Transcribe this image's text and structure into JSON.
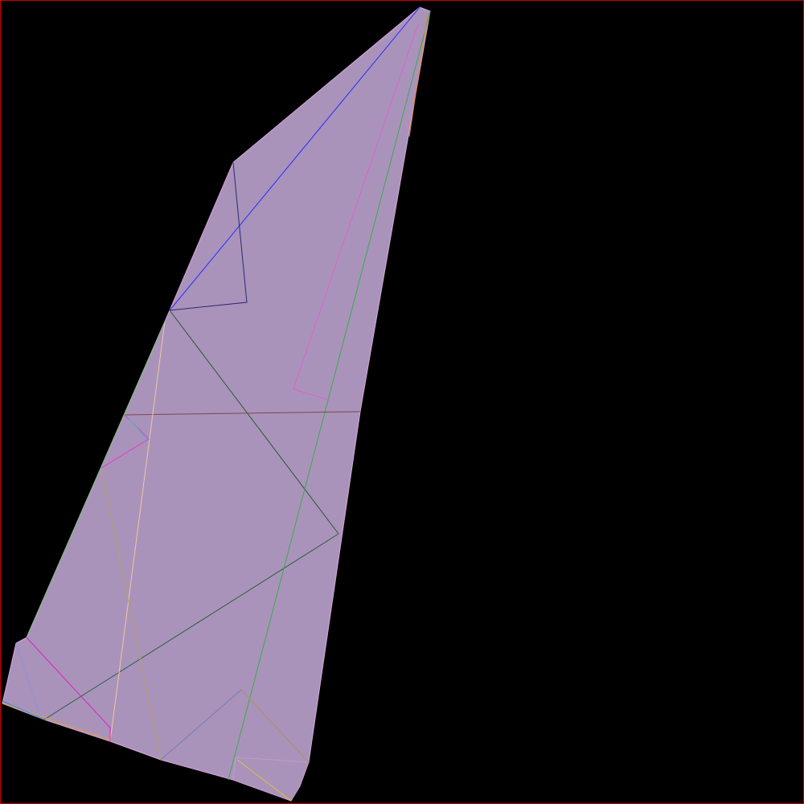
{
  "colors": {
    "background": "#000000",
    "frame": "#cc0000",
    "shape_fill": "#a993bb",
    "shape_stroke": "#c8a0d0"
  },
  "diagram": {
    "type": "polygon-crease-pattern"
  }
}
